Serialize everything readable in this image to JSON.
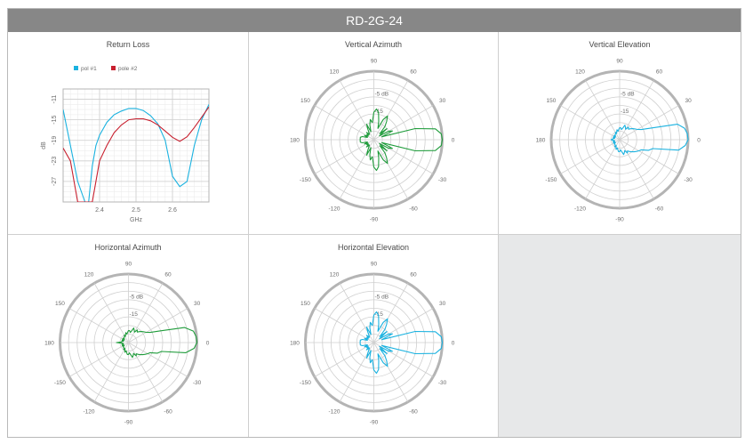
{
  "header": {
    "title": "RD-2G-24"
  },
  "chart_data": [
    {
      "type": "line",
      "title": "Return Loss",
      "xlabel": "GHz",
      "ylabel": "dB",
      "xlim": [
        2.3,
        2.7
      ],
      "ylim": [
        -31,
        -9
      ],
      "xticks": [
        2.4,
        2.5,
        2.6
      ],
      "xtick_labels": [
        "2.4",
        "2.5",
        "2.6"
      ],
      "yticks": [
        -11,
        -15,
        -19,
        -23,
        -27
      ],
      "ytick_labels": [
        "-11",
        "-15",
        "-19",
        "-23",
        "-27"
      ],
      "grid": true,
      "legend": "top-left",
      "series": [
        {
          "name": "pol #1",
          "color": "#1ab2e0",
          "x": [
            2.3,
            2.32,
            2.34,
            2.36,
            2.37,
            2.38,
            2.39,
            2.4,
            2.42,
            2.44,
            2.46,
            2.48,
            2.5,
            2.52,
            2.54,
            2.56,
            2.58,
            2.6,
            2.62,
            2.64,
            2.66,
            2.68,
            2.7
          ],
          "y": [
            -13,
            -20,
            -27,
            -31,
            -31,
            -24,
            -20,
            -18,
            -15.5,
            -14,
            -13.3,
            -12.8,
            -12.8,
            -13.2,
            -14.2,
            -15.8,
            -19,
            -26,
            -28,
            -27,
            -20,
            -15,
            -12
          ]
        },
        {
          "name": "pole #2",
          "color": "#c8202f",
          "x": [
            2.3,
            2.32,
            2.34,
            2.36,
            2.37,
            2.38,
            2.39,
            2.4,
            2.42,
            2.44,
            2.46,
            2.48,
            2.5,
            2.52,
            2.54,
            2.56,
            2.58,
            2.6,
            2.62,
            2.64,
            2.66,
            2.68,
            2.7
          ],
          "y": [
            -20.5,
            -23,
            -31,
            -31,
            -31,
            -31,
            -27,
            -23,
            -20,
            -17.5,
            -16,
            -15,
            -14.8,
            -14.8,
            -15.2,
            -16,
            -17.2,
            -18.4,
            -19.2,
            -18.3,
            -16.5,
            -14.5,
            -12.5
          ]
        }
      ]
    },
    {
      "type": "polar",
      "title": "Vertical Azimuth",
      "color": "#1f9c3b",
      "radial_min_db": -40,
      "radial_max_db": 0,
      "radial_label": "-5 dB",
      "radial_label2": "-15",
      "angle_labels": [
        "90",
        "60",
        "30",
        "0",
        "-30",
        "-60",
        "-90",
        "-120",
        "-150",
        "180",
        "150",
        "120"
      ],
      "pattern_angles": [
        0,
        5,
        10,
        15,
        20,
        25,
        30,
        35,
        40,
        45,
        50,
        55,
        60,
        65,
        70,
        75,
        80,
        85,
        90,
        95,
        100,
        105,
        110,
        115,
        120,
        125,
        130,
        135,
        140,
        145,
        150,
        155,
        160,
        165,
        170,
        175,
        180,
        185,
        190,
        195,
        200,
        205,
        210,
        215,
        220,
        225,
        230,
        235,
        240,
        245,
        250,
        255,
        260,
        265,
        270,
        275,
        280,
        285,
        290,
        295,
        300,
        305,
        310,
        315,
        320,
        325,
        330,
        335,
        340,
        345,
        350,
        355
      ],
      "pattern_db": [
        0,
        -0.4,
        -3.5,
        -15,
        -35,
        -28,
        -30,
        -36,
        -30,
        -35,
        -30,
        -27,
        -24,
        -27,
        -33,
        -29,
        -24,
        -22,
        -24,
        -30,
        -28,
        -31,
        -35,
        -30,
        -33,
        -35,
        -36,
        -34,
        -36,
        -35,
        -36,
        -34,
        -36,
        -33,
        -32,
        -32,
        -32,
        -32,
        -32,
        -33,
        -36,
        -34,
        -36,
        -35,
        -36,
        -34,
        -36,
        -35,
        -33,
        -30,
        -35,
        -31,
        -28,
        -30,
        -24,
        -22,
        -24,
        -29,
        -33,
        -27,
        -24,
        -27,
        -30,
        -35,
        -30,
        -36,
        -30,
        -28,
        -35,
        -15,
        -3.5,
        -0.4
      ]
    },
    {
      "type": "polar",
      "title": "Vertical Elevation",
      "color": "#1ab2e0",
      "radial_min_db": -40,
      "radial_max_db": 0,
      "radial_label": "-5 dB",
      "radial_label2": "-15",
      "angle_labels": [
        "90",
        "60",
        "30",
        "0",
        "-30",
        "-60",
        "-90",
        "-120",
        "-150",
        "180",
        "150",
        "120"
      ],
      "pattern_angles": [
        0,
        5,
        10,
        15,
        20,
        25,
        30,
        35,
        40,
        45,
        50,
        55,
        60,
        65,
        70,
        75,
        80,
        85,
        90,
        95,
        100,
        105,
        110,
        115,
        120,
        125,
        130,
        135,
        140,
        145,
        150,
        155,
        160,
        165,
        170,
        175,
        180,
        185,
        190,
        195,
        200,
        205,
        210,
        215,
        220,
        225,
        230,
        235,
        240,
        245,
        250,
        255,
        260,
        265,
        270,
        275,
        280,
        285,
        290,
        295,
        300,
        305,
        310,
        315,
        320,
        325,
        330,
        335,
        340,
        345,
        350,
        355
      ],
      "pattern_db": [
        0,
        -0.3,
        -1.5,
        -5,
        -20,
        -26,
        -28,
        -29,
        -30,
        -31,
        -32,
        -31,
        -33,
        -32,
        -31,
        -33,
        -34,
        -33,
        -33,
        -34,
        -35,
        -34,
        -35,
        -36,
        -35,
        -36,
        -36,
        -36,
        -37,
        -36,
        -36,
        -37,
        -36,
        -37,
        -36,
        -36,
        -35,
        -36,
        -37,
        -36,
        -37,
        -36,
        -36,
        -37,
        -36,
        -36,
        -36,
        -35,
        -36,
        -35,
        -34,
        -35,
        -34,
        -33,
        -33,
        -34,
        -33,
        -31,
        -32,
        -33,
        -31,
        -32,
        -31,
        -30,
        -29,
        -28,
        -27,
        -26,
        -22,
        -20,
        -5,
        -1.5,
        -0.3
      ]
    },
    {
      "type": "polar",
      "title": "Horizontal Azimuth",
      "color": "#1f9c3b",
      "radial_min_db": -40,
      "radial_max_db": 0,
      "radial_label": "-5 dB",
      "radial_label2": "-15",
      "angle_labels": [
        "90",
        "60",
        "30",
        "0",
        "-30",
        "-60",
        "-90",
        "-120",
        "-150",
        "180",
        "150",
        "120"
      ],
      "pattern_angles": [
        0,
        5,
        10,
        15,
        20,
        25,
        30,
        35,
        40,
        45,
        50,
        55,
        60,
        65,
        70,
        75,
        80,
        85,
        90,
        95,
        100,
        105,
        110,
        115,
        120,
        125,
        130,
        135,
        140,
        145,
        150,
        155,
        160,
        165,
        170,
        175,
        180,
        185,
        190,
        195,
        200,
        205,
        210,
        215,
        220,
        225,
        230,
        235,
        240,
        245,
        250,
        255,
        260,
        265,
        270,
        275,
        280,
        285,
        290,
        295,
        300,
        305,
        310,
        315,
        320,
        325,
        330,
        335,
        340,
        345,
        350,
        355
      ],
      "pattern_db": [
        0,
        -0.3,
        -1.5,
        -6,
        -20,
        -26,
        -28,
        -29,
        -30,
        -31,
        -32,
        -31,
        -33,
        -32,
        -31,
        -33,
        -34,
        -33,
        -33,
        -34,
        -35,
        -34,
        -35,
        -36,
        -35,
        -36,
        -36,
        -36,
        -37,
        -36,
        -36,
        -37,
        -36,
        -37,
        -36,
        -36,
        -33,
        -36,
        -37,
        -36,
        -37,
        -36,
        -36,
        -37,
        -36,
        -36,
        -36,
        -35,
        -36,
        -35,
        -34,
        -35,
        -34,
        -33,
        -33,
        -34,
        -33,
        -31,
        -32,
        -33,
        -31,
        -32,
        -31,
        -30,
        -29,
        -28,
        -27,
        -26,
        -22,
        -20,
        -6,
        -1.5,
        -0.3
      ]
    },
    {
      "type": "polar",
      "title": "Horizontal Elevation",
      "color": "#1ab2e0",
      "radial_min_db": -40,
      "radial_max_db": 0,
      "radial_label": "-5 dB",
      "radial_label2": "-15",
      "angle_labels": [
        "90",
        "60",
        "30",
        "0",
        "-30",
        "-60",
        "-90",
        "-120",
        "-150",
        "180",
        "150",
        "120"
      ],
      "pattern_angles": [
        0,
        5,
        10,
        15,
        20,
        25,
        30,
        35,
        40,
        45,
        50,
        55,
        60,
        65,
        70,
        75,
        80,
        85,
        90,
        95,
        100,
        105,
        110,
        115,
        120,
        125,
        130,
        135,
        140,
        145,
        150,
        155,
        160,
        165,
        170,
        175,
        180,
        185,
        190,
        195,
        200,
        205,
        210,
        215,
        220,
        225,
        230,
        235,
        240,
        245,
        250,
        255,
        260,
        265,
        270,
        275,
        280,
        285,
        290,
        295,
        300,
        305,
        310,
        315,
        320,
        325,
        330,
        335,
        340,
        345,
        350,
        355
      ],
      "pattern_db": [
        0,
        -0.4,
        -3.5,
        -15,
        -35,
        -28,
        -30,
        -36,
        -30,
        -35,
        -30,
        -27,
        -24,
        -27,
        -33,
        -29,
        -24,
        -22,
        -24,
        -30,
        -28,
        -31,
        -35,
        -30,
        -33,
        -35,
        -36,
        -34,
        -36,
        -35,
        -36,
        -34,
        -36,
        -33,
        -32,
        -32,
        -32,
        -32,
        -32,
        -33,
        -36,
        -34,
        -36,
        -35,
        -36,
        -34,
        -36,
        -35,
        -33,
        -30,
        -35,
        -31,
        -28,
        -30,
        -24,
        -22,
        -24,
        -29,
        -33,
        -27,
        -24,
        -27,
        -30,
        -35,
        -30,
        -36,
        -30,
        -28,
        -35,
        -15,
        -3.5,
        -0.4
      ]
    }
  ]
}
